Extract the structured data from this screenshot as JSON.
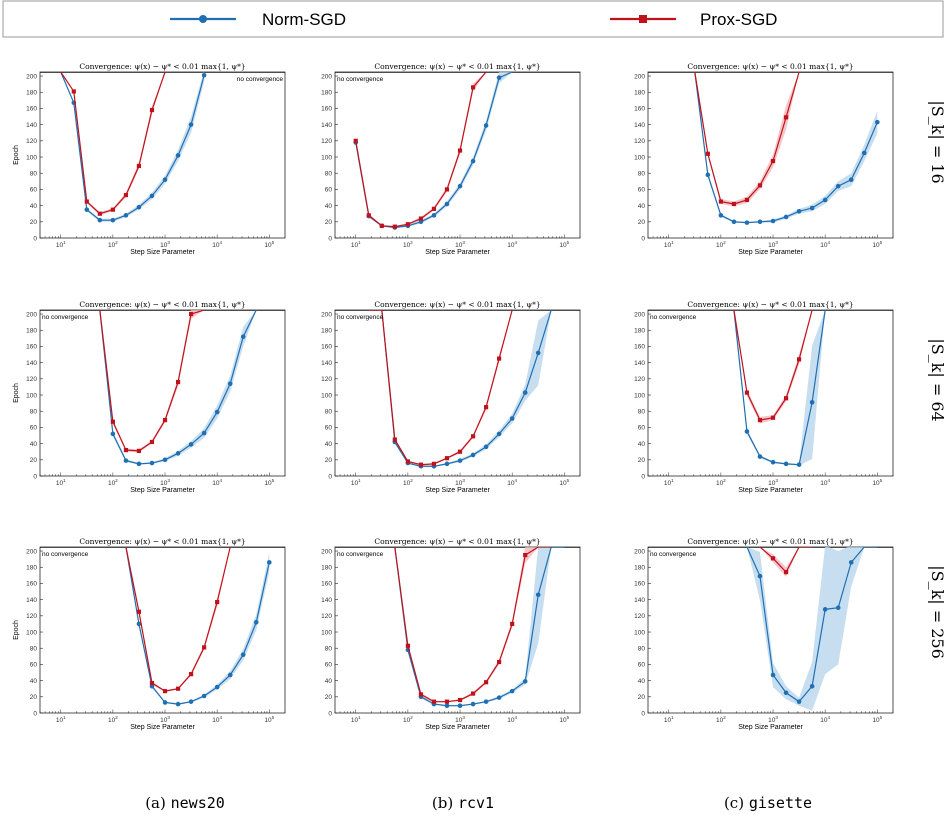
{
  "colors": {
    "norm": "#1f6fb2",
    "prox": "#c1121c",
    "norm_band": "#b9d6ee",
    "prox_band": "#f2b8bd"
  },
  "legend": [
    {
      "label": "Norm-SGD",
      "color": "#1f6fb2",
      "marker": "circle"
    },
    {
      "label": "Prox-SGD",
      "color": "#c1121c",
      "marker": "square"
    }
  ],
  "columns": [
    {
      "caption_prefix": "(a) ",
      "caption_name": "news20"
    },
    {
      "caption_prefix": "(b) ",
      "caption_name": "rcv1"
    },
    {
      "caption_prefix": "(c) ",
      "caption_name": "gisette"
    }
  ],
  "rows": [
    {
      "label": "|S_k| = 16"
    },
    {
      "label": "|S_k| = 64"
    },
    {
      "label": "|S_k| = 256"
    }
  ],
  "panel_title": "Convergence:  ψ(x) − ψ* < 0.01 max{1, ψ*}",
  "annotation": "no convergence",
  "chart_data": [
    {
      "type": "line",
      "dataset": "news20",
      "batch": 16,
      "title": "Convergence:  ψ(x) − ψ* < 0.01 max{1, ψ*}",
      "xlabel": "Step Size Parameter",
      "ylabel": "Epoch",
      "xscale": "log",
      "xlim": [
        4,
        200000
      ],
      "ylim": [
        0,
        205
      ],
      "cap": 205,
      "annotation": "no convergence",
      "annotation_pos": "top-right",
      "series": [
        {
          "name": "Norm-SGD",
          "x": [
            10,
            17.8,
            31.6,
            56.2,
            100,
            178,
            316,
            562,
            1000,
            1780,
            3160,
            5620
          ],
          "y": [
            205,
            167,
            35,
            22,
            22,
            28,
            38,
            52,
            72,
            102,
            140,
            201
          ],
          "band": [
            0,
            0,
            2,
            2,
            2,
            2,
            3,
            4,
            5,
            7,
            10,
            8
          ]
        },
        {
          "name": "Prox-SGD",
          "x": [
            10,
            17.8,
            31.6,
            56.2,
            100,
            178,
            316,
            562,
            1000
          ],
          "y": [
            205,
            181,
            45,
            30,
            35,
            53,
            89,
            158,
            205
          ],
          "band": [
            0,
            0,
            2,
            2,
            2,
            3,
            4,
            5,
            0
          ]
        }
      ]
    },
    {
      "type": "line",
      "dataset": "rcv1",
      "batch": 16,
      "title": "Convergence:  ψ(x) − ψ* < 0.01 max{1, ψ*}",
      "xlabel": "Step Size Parameter",
      "ylabel": "",
      "xscale": "log",
      "xlim": [
        4,
        200000
      ],
      "ylim": [
        0,
        205
      ],
      "cap": 205,
      "annotation": "no convergence",
      "annotation_pos": "top-left",
      "series": [
        {
          "name": "Norm-SGD",
          "x": [
            10,
            17.8,
            31.6,
            56.2,
            100,
            178,
            316,
            562,
            1000,
            1780,
            3160,
            5620,
            10000
          ],
          "y": [
            118,
            27,
            15,
            13,
            15,
            20,
            28,
            42,
            64,
            95,
            139,
            198,
            205
          ],
          "band": [
            3,
            2,
            1,
            1,
            1,
            2,
            2,
            3,
            4,
            5,
            6,
            7,
            0
          ]
        },
        {
          "name": "Prox-SGD",
          "x": [
            10,
            17.8,
            31.6,
            56.2,
            100,
            178,
            316,
            562,
            1000,
            1780,
            3160
          ],
          "y": [
            120,
            28,
            15,
            14,
            17,
            24,
            36,
            60,
            108,
            186,
            205
          ],
          "band": [
            3,
            2,
            1,
            1,
            1,
            2,
            2,
            3,
            4,
            5,
            0
          ]
        }
      ]
    },
    {
      "type": "line",
      "dataset": "gisette",
      "batch": 16,
      "title": "Convergence:  ψ(x) − ψ* < 0.01 max{1, ψ*}",
      "xlabel": "Step Size Parameter",
      "ylabel": "",
      "xscale": "log",
      "xlim": [
        4,
        200000
      ],
      "ylim": [
        0,
        205
      ],
      "cap": 205,
      "annotation": "",
      "annotation_pos": "",
      "series": [
        {
          "name": "Norm-SGD",
          "x": [
            31.6,
            56.2,
            100,
            178,
            316,
            562,
            1000,
            1780,
            3160,
            5620,
            10000,
            17800,
            31600,
            56200,
            100000
          ],
          "y": [
            205,
            78,
            28,
            20,
            19,
            20,
            21,
            26,
            33,
            37,
            47,
            64,
            72,
            105,
            143
          ],
          "band": [
            0,
            3,
            2,
            1,
            1,
            1,
            2,
            2,
            3,
            4,
            5,
            6,
            8,
            10,
            14
          ]
        },
        {
          "name": "Prox-SGD",
          "x": [
            31.6,
            56.2,
            100,
            178,
            316,
            562,
            1000,
            1780,
            3160
          ],
          "y": [
            205,
            104,
            45,
            42,
            47,
            65,
            95,
            149,
            205
          ],
          "band": [
            0,
            3,
            3,
            3,
            4,
            5,
            8,
            15,
            0
          ]
        }
      ]
    },
    {
      "type": "line",
      "dataset": "news20",
      "batch": 64,
      "title": "Convergence:  ψ(x) − ψ* < 0.01 max{1, ψ*}",
      "xlabel": "Step Size Parameter",
      "ylabel": "Epoch",
      "xscale": "log",
      "xlim": [
        4,
        200000
      ],
      "ylim": [
        0,
        205
      ],
      "cap": 205,
      "annotation": "no convergence",
      "annotation_pos": "top-left",
      "series": [
        {
          "name": "Norm-SGD",
          "x": [
            56.2,
            100,
            178,
            316,
            562,
            1000,
            1780,
            3160,
            5620,
            10000,
            17800,
            31600,
            56200
          ],
          "y": [
            205,
            52,
            19,
            15,
            16,
            20,
            28,
            39,
            53,
            79,
            114,
            172,
            205
          ],
          "band": [
            0,
            3,
            2,
            1,
            1,
            2,
            3,
            4,
            6,
            8,
            10,
            12,
            0
          ]
        },
        {
          "name": "Prox-SGD",
          "x": [
            56.2,
            100,
            178,
            316,
            562,
            1000,
            1780,
            3160,
            5620
          ],
          "y": [
            205,
            67,
            32,
            31,
            42,
            69,
            116,
            200,
            205
          ],
          "band": [
            0,
            3,
            2,
            2,
            2,
            3,
            5,
            6,
            0
          ]
        }
      ]
    },
    {
      "type": "line",
      "dataset": "rcv1",
      "batch": 64,
      "title": "Convergence:  ψ(x) − ψ* < 0.01 max{1, ψ*}",
      "xlabel": "Step Size Parameter",
      "ylabel": "",
      "xscale": "log",
      "xlim": [
        4,
        200000
      ],
      "ylim": [
        0,
        205
      ],
      "cap": 205,
      "annotation": "no convergence",
      "annotation_pos": "top-left",
      "series": [
        {
          "name": "Norm-SGD",
          "x": [
            17.8,
            31.6,
            56.2,
            100,
            178,
            316,
            562,
            1000,
            1780,
            3160,
            5620,
            10000,
            17800,
            31600,
            56200
          ],
          "y": [
            205,
            205,
            42,
            16,
            12,
            12,
            15,
            19,
            26,
            36,
            52,
            71,
            103,
            152,
            205
          ],
          "band": [
            0,
            0,
            2,
            1,
            1,
            1,
            1,
            2,
            2,
            3,
            4,
            6,
            10,
            40,
            0
          ]
        },
        {
          "name": "Prox-SGD",
          "x": [
            17.8,
            31.6,
            56.2,
            100,
            178,
            316,
            562,
            1000,
            1780,
            3160,
            5620,
            10000
          ],
          "y": [
            205,
            205,
            45,
            18,
            14,
            15,
            22,
            30,
            49,
            85,
            145,
            205
          ],
          "band": [
            0,
            0,
            2,
            1,
            1,
            1,
            1,
            2,
            2,
            3,
            4,
            0
          ]
        }
      ]
    },
    {
      "type": "line",
      "dataset": "gisette",
      "batch": 64,
      "title": "Convergence:  ψ(x) − ψ* < 0.01 max{1, ψ*}",
      "xlabel": "Step Size Parameter",
      "ylabel": "",
      "xscale": "log",
      "xlim": [
        4,
        200000
      ],
      "ylim": [
        0,
        205
      ],
      "cap": 205,
      "annotation": "no convergence",
      "annotation_pos": "top-left",
      "series": [
        {
          "name": "Norm-SGD",
          "x": [
            178,
            316,
            562,
            1000,
            1780,
            3160,
            5620,
            10000
          ],
          "y": [
            205,
            55,
            24,
            17,
            15,
            14,
            91,
            205
          ],
          "band": [
            0,
            3,
            2,
            1,
            1,
            1,
            70,
            0
          ]
        },
        {
          "name": "Prox-SGD",
          "x": [
            178,
            316,
            562,
            1000,
            1780,
            3160,
            5620
          ],
          "y": [
            205,
            103,
            69,
            72,
            96,
            144,
            205
          ],
          "band": [
            0,
            4,
            4,
            3,
            4,
            6,
            0
          ]
        }
      ]
    },
    {
      "type": "line",
      "dataset": "news20",
      "batch": 256,
      "title": "Convergence:  ψ(x) − ψ* < 0.01 max{1, ψ*}",
      "xlabel": "Step Size Parameter",
      "ylabel": "Epoch",
      "xscale": "log",
      "xlim": [
        4,
        200000
      ],
      "ylim": [
        0,
        205
      ],
      "cap": 205,
      "annotation": "no convergence",
      "annotation_pos": "top-left",
      "series": [
        {
          "name": "Norm-SGD",
          "x": [
            178,
            316,
            562,
            1000,
            1780,
            3160,
            5620,
            10000,
            17800,
            31600,
            56200,
            100000
          ],
          "y": [
            205,
            110,
            33,
            13,
            11,
            14,
            21,
            32,
            47,
            72,
            112,
            186
          ],
          "band": [
            0,
            4,
            2,
            1,
            1,
            1,
            2,
            3,
            5,
            7,
            10,
            12
          ]
        },
        {
          "name": "Prox-SGD",
          "x": [
            178,
            316,
            562,
            1000,
            1780,
            3160,
            5620,
            10000,
            17800
          ],
          "y": [
            205,
            125,
            37,
            27,
            30,
            48,
            81,
            137,
            205
          ],
          "band": [
            0,
            4,
            2,
            1,
            1,
            2,
            3,
            5,
            0
          ]
        }
      ]
    },
    {
      "type": "line",
      "dataset": "rcv1",
      "batch": 256,
      "title": "Convergence:  ψ(x) − ψ* < 0.01 max{1, ψ*}",
      "xlabel": "Step Size Parameter",
      "ylabel": "",
      "xscale": "log",
      "xlim": [
        4,
        200000
      ],
      "ylim": [
        0,
        205
      ],
      "cap": 205,
      "annotation": "no convergence",
      "annotation_pos": "top-left",
      "series": [
        {
          "name": "Norm-SGD",
          "x": [
            56.2,
            100,
            178,
            316,
            562,
            1000,
            1780,
            3160,
            5620,
            10000,
            17800,
            31600,
            56200,
            100000
          ],
          "y": [
            205,
            78,
            20,
            11,
            9,
            9,
            11,
            14,
            19,
            27,
            39,
            146,
            205,
            205
          ],
          "band": [
            0,
            3,
            2,
            1,
            1,
            1,
            1,
            1,
            2,
            2,
            4,
            60,
            0,
            0
          ]
        },
        {
          "name": "Prox-SGD",
          "x": [
            56.2,
            100,
            178,
            316,
            562,
            1000,
            1780,
            3160,
            5620,
            10000,
            17800,
            31600,
            56200
          ],
          "y": [
            205,
            83,
            23,
            14,
            14,
            16,
            24,
            38,
            63,
            110,
            195,
            205,
            205
          ],
          "band": [
            0,
            3,
            2,
            1,
            1,
            1,
            2,
            2,
            3,
            4,
            10,
            0,
            0
          ]
        }
      ]
    },
    {
      "type": "line",
      "dataset": "gisette",
      "batch": 256,
      "title": "Convergence:  ψ(x) − ψ* < 0.01 max{1, ψ*}",
      "xlabel": "Step Size Parameter",
      "ylabel": "",
      "xscale": "log",
      "xlim": [
        4,
        200000
      ],
      "ylim": [
        0,
        205
      ],
      "cap": 205,
      "annotation": "no convergence",
      "annotation_pos": "top-left",
      "series": [
        {
          "name": "Norm-SGD",
          "x": [
            316,
            562,
            1000,
            1780,
            3160,
            5620,
            10000,
            17800,
            31600,
            56200,
            100000
          ],
          "y": [
            205,
            169,
            47,
            25,
            14,
            33,
            128,
            130,
            186,
            205,
            205
          ],
          "band": [
            0,
            30,
            15,
            8,
            5,
            30,
            80,
            70,
            30,
            0,
            0
          ]
        },
        {
          "name": "Prox-SGD",
          "x": [
            562,
            1000,
            1780,
            3160,
            5620
          ],
          "y": [
            205,
            191,
            174,
            205,
            205
          ],
          "band": [
            0,
            5,
            6,
            0,
            0
          ]
        }
      ]
    }
  ]
}
